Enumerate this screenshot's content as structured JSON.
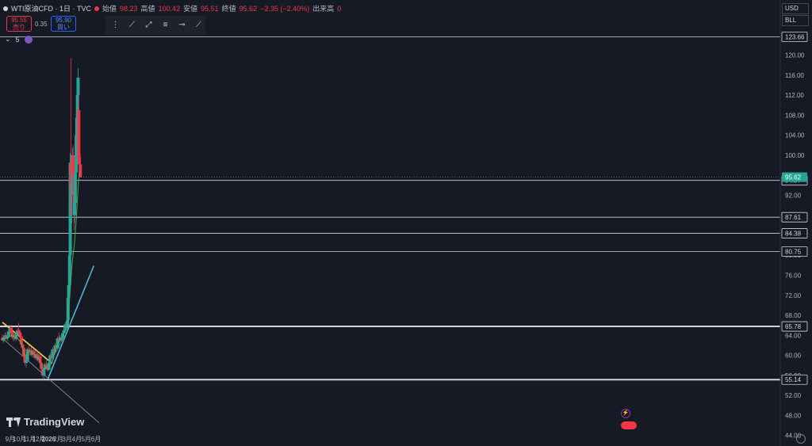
{
  "header": {
    "symbol": "WTI原油CFD · 1日 · TVC",
    "open_label": "始値",
    "open": "98.23",
    "high_label": "高値",
    "high": "100.42",
    "low_label": "安値",
    "low": "95.51",
    "close_label": "終値",
    "close": "95.62",
    "change": "−2.35 (−2.40%)",
    "volume_label": "出来高",
    "volume": "0"
  },
  "quote": {
    "sell_price": "95.55",
    "sell_label": "売り",
    "spread": "0.35",
    "buy_price": "95.90",
    "buy_label": "買い"
  },
  "indicator": {
    "label": "5"
  },
  "scale_controls": {
    "currency": "USD",
    "unit": "BLL"
  },
  "branding": {
    "logo_text": "TradingView"
  },
  "colors": {
    "background": "#161a25",
    "up": "#26a69a",
    "down": "#f23645",
    "ma": "#4caf50",
    "trend_yellow": "#e6d84a",
    "trend_cyan": "#4fb6d8",
    "hline": "#d1d4dc",
    "price_label": "#26a69a"
  },
  "chart_data": {
    "type": "candlestick",
    "x_type": "date",
    "x_ticks": [
      {
        "date": "2025-09-01",
        "label": "9月"
      },
      {
        "date": "2025-10-01",
        "label": "10月"
      },
      {
        "date": "2025-11-01",
        "label": "11月"
      },
      {
        "date": "2025-12-01",
        "label": "12月"
      },
      {
        "date": "2026-01-01",
        "label": "2026"
      },
      {
        "date": "2026-02-01",
        "label": "2月"
      },
      {
        "date": "2026-03-01",
        "label": "3月"
      },
      {
        "date": "2026-04-01",
        "label": "4月"
      },
      {
        "date": "2026-05-01",
        "label": "5月"
      },
      {
        "date": "2026-06-01",
        "label": "6月"
      }
    ],
    "y_ticks": [
      44,
      48,
      52,
      56,
      60,
      64,
      68,
      72,
      76,
      80,
      84,
      88,
      92,
      96,
      100,
      104,
      108,
      112,
      116,
      120
    ],
    "ylim": [
      43.3,
      127
    ],
    "current_price": 95.62,
    "horizontal_levels": [
      123.66,
      94.97,
      87.61,
      84.38,
      80.75,
      65.78,
      55.14
    ],
    "thick_levels": [
      65.78,
      55.14
    ],
    "trendlines": [
      {
        "color": "yellow",
        "points": [
          [
            "2025-08-07",
            66.6
          ],
          [
            "2026-01-12",
            58.4
          ]
        ]
      },
      {
        "color": "cyan",
        "points": [
          [
            "2025-12-30",
            55.3
          ],
          [
            "2026-05-25",
            77.9
          ]
        ]
      },
      {
        "color": "gray",
        "points": [
          [
            "2025-08-07",
            63.4
          ],
          [
            "2026-06-11",
            46.5
          ]
        ]
      }
    ],
    "moving_average": {
      "period": 5,
      "values": [
        [
          "2025-08-07",
          63.2
        ],
        [
          "2025-08-20",
          63.4
        ],
        [
          "2025-09-05",
          64.0
        ],
        [
          "2025-09-20",
          63.6
        ],
        [
          "2025-10-05",
          62.6
        ],
        [
          "2025-10-18",
          59.8
        ],
        [
          "2025-11-01",
          60.8
        ],
        [
          "2025-11-15",
          60.3
        ],
        [
          "2025-12-01",
          59.2
        ],
        [
          "2025-12-15",
          57.2
        ],
        [
          "2025-12-30",
          57.8
        ],
        [
          "2026-01-12",
          58.4
        ],
        [
          "2026-01-25",
          61.5
        ],
        [
          "2026-02-08",
          63.4
        ],
        [
          "2026-02-22",
          64.6
        ],
        [
          "2026-03-03",
          66.2
        ],
        [
          "2026-03-10",
          72.5
        ],
        [
          "2026-03-17",
          78.5
        ],
        [
          "2026-03-24",
          82.0
        ],
        [
          "2026-03-31",
          88.0
        ],
        [
          "2026-04-05",
          93.5
        ],
        [
          "2026-04-09",
          96.5
        ],
        [
          "2026-04-12",
          97.0
        ]
      ]
    },
    "candles": [
      [
        "2025-08-07",
        63.5,
        64.2,
        62.8,
        63.0
      ],
      [
        "2025-08-11",
        63.0,
        63.8,
        62.5,
        63.6
      ],
      [
        "2025-08-15",
        63.6,
        64.5,
        63.0,
        64.0
      ],
      [
        "2025-08-19",
        64.0,
        64.6,
        63.2,
        63.4
      ],
      [
        "2025-08-23",
        63.4,
        64.2,
        62.9,
        63.9
      ],
      [
        "2025-08-27",
        63.9,
        65.2,
        63.5,
        64.8
      ],
      [
        "2025-08-31",
        64.8,
        66.0,
        64.0,
        65.5
      ],
      [
        "2025-09-04",
        65.5,
        66.1,
        64.2,
        64.5
      ],
      [
        "2025-09-08",
        64.5,
        65.0,
        63.2,
        63.5
      ],
      [
        "2025-09-12",
        63.5,
        64.3,
        62.8,
        64.0
      ],
      [
        "2025-09-16",
        64.0,
        64.8,
        63.0,
        63.3
      ],
      [
        "2025-09-20",
        63.3,
        64.5,
        62.9,
        64.2
      ],
      [
        "2025-09-24",
        64.2,
        65.4,
        63.8,
        65.0
      ],
      [
        "2025-09-28",
        65.0,
        66.5,
        64.5,
        64.6
      ],
      [
        "2025-10-02",
        64.6,
        65.2,
        63.5,
        63.8
      ],
      [
        "2025-10-06",
        63.8,
        64.3,
        62.0,
        62.2
      ],
      [
        "2025-10-10",
        62.2,
        62.8,
        61.0,
        61.5
      ],
      [
        "2025-10-14",
        61.5,
        62.0,
        59.5,
        59.8
      ],
      [
        "2025-10-18",
        59.8,
        60.5,
        58.0,
        58.5
      ],
      [
        "2025-10-22",
        58.5,
        59.2,
        57.5,
        58.9
      ],
      [
        "2025-10-26",
        58.9,
        61.5,
        58.5,
        61.2
      ],
      [
        "2025-10-30",
        61.2,
        62.0,
        60.2,
        60.8
      ],
      [
        "2025-11-03",
        60.8,
        61.5,
        60.0,
        61.0
      ],
      [
        "2025-11-07",
        61.0,
        61.6,
        59.8,
        60.1
      ],
      [
        "2025-11-11",
        60.1,
        61.2,
        59.6,
        60.9
      ],
      [
        "2025-11-15",
        60.9,
        61.3,
        59.9,
        60.3
      ],
      [
        "2025-11-19",
        60.3,
        61.0,
        59.2,
        59.5
      ],
      [
        "2025-11-23",
        59.5,
        60.6,
        59.0,
        60.2
      ],
      [
        "2025-11-27",
        60.2,
        60.8,
        58.8,
        59.1
      ],
      [
        "2025-12-01",
        59.1,
        60.0,
        58.5,
        59.8
      ],
      [
        "2025-12-05",
        59.8,
        60.2,
        58.2,
        58.5
      ],
      [
        "2025-12-09",
        58.5,
        59.0,
        57.0,
        57.3
      ],
      [
        "2025-12-13",
        57.3,
        57.8,
        55.6,
        56.0
      ],
      [
        "2025-12-17",
        56.0,
        57.5,
        55.2,
        57.2
      ],
      [
        "2025-12-21",
        57.2,
        58.6,
        56.8,
        58.2
      ],
      [
        "2025-12-25",
        58.2,
        59.0,
        57.5,
        57.8
      ],
      [
        "2025-12-29",
        57.8,
        58.5,
        56.8,
        57.1
      ],
      [
        "2026-01-02",
        57.1,
        58.8,
        56.9,
        58.5
      ],
      [
        "2026-01-06",
        58.5,
        60.5,
        58.0,
        60.0
      ],
      [
        "2026-01-10",
        60.0,
        61.0,
        59.0,
        59.4
      ],
      [
        "2026-01-14",
        59.4,
        61.6,
        59.0,
        61.2
      ],
      [
        "2026-01-18",
        61.2,
        61.8,
        60.2,
        60.6
      ],
      [
        "2026-01-22",
        60.6,
        62.4,
        60.2,
        62.0
      ],
      [
        "2026-01-26",
        62.0,
        63.0,
        61.0,
        61.4
      ],
      [
        "2026-01-30",
        61.4,
        63.8,
        61.0,
        63.4
      ],
      [
        "2026-02-03",
        63.4,
        64.6,
        62.5,
        63.0
      ],
      [
        "2026-02-07",
        63.0,
        64.0,
        62.0,
        63.6
      ],
      [
        "2026-02-11",
        63.6,
        64.2,
        62.6,
        62.9
      ],
      [
        "2026-02-15",
        62.9,
        64.8,
        62.5,
        64.4
      ],
      [
        "2026-02-19",
        64.4,
        65.5,
        63.8,
        65.0
      ],
      [
        "2026-02-23",
        65.0,
        66.6,
        64.6,
        66.2
      ],
      [
        "2026-02-27",
        66.2,
        66.8,
        65.4,
        65.8
      ],
      [
        "2026-03-02",
        65.8,
        68.0,
        65.2,
        67.0
      ],
      [
        "2026-03-04",
        67.0,
        72.5,
        66.5,
        71.5
      ],
      [
        "2026-03-06",
        71.5,
        75.0,
        70.5,
        74.0
      ],
      [
        "2026-03-09",
        74.0,
        91.0,
        73.0,
        80.0
      ],
      [
        "2026-03-11",
        80.0,
        100.5,
        79.0,
        98.5
      ],
      [
        "2026-03-13",
        98.5,
        119.4,
        88.0,
        92.0
      ],
      [
        "2026-03-16",
        92.0,
        96.5,
        86.5,
        94.5
      ],
      [
        "2026-03-18",
        94.5,
        101.5,
        92.0,
        100.0
      ],
      [
        "2026-03-20",
        100.0,
        102.0,
        94.0,
        96.0
      ],
      [
        "2026-03-23",
        96.0,
        99.5,
        85.0,
        88.0
      ],
      [
        "2026-03-25",
        88.0,
        94.0,
        86.5,
        90.5
      ],
      [
        "2026-03-27",
        90.5,
        97.0,
        89.5,
        96.5
      ],
      [
        "2026-03-30",
        96.5,
        105.0,
        95.5,
        104.0
      ],
      [
        "2026-04-01",
        104.0,
        110.0,
        102.5,
        107.5
      ],
      [
        "2026-04-03",
        107.5,
        114.0,
        104.0,
        112.0
      ],
      [
        "2026-04-05",
        112.0,
        117.4,
        109.0,
        115.5
      ],
      [
        "2026-04-07",
        109.0,
        112.0,
        98.0,
        99.5
      ],
      [
        "2026-04-09",
        99.5,
        106.0,
        97.0,
        98.2
      ],
      [
        "2026-04-12",
        98.2,
        100.4,
        95.5,
        95.6
      ]
    ]
  }
}
